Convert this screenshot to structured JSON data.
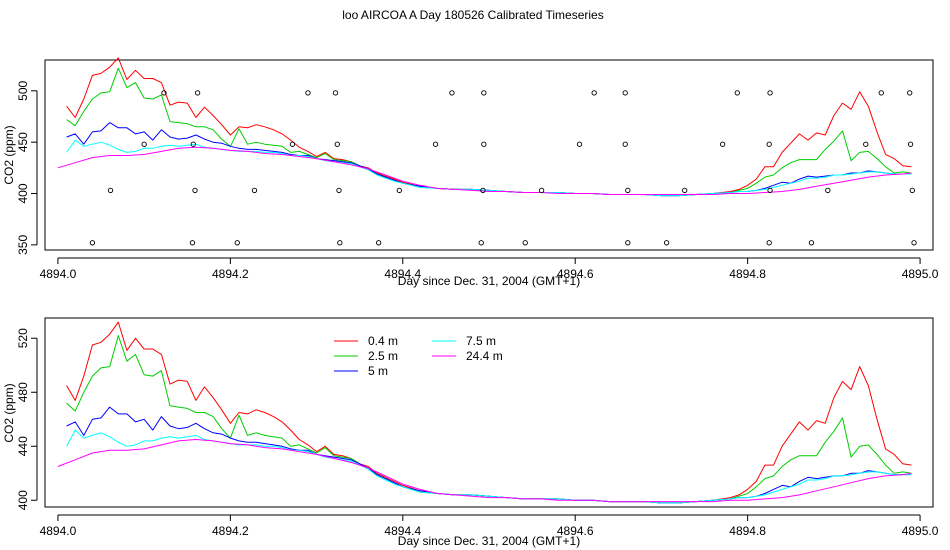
{
  "title": "loo AIRCOA A  Day 180526  Calibrated Timeseries",
  "colors": {
    "0.4 m": "#ff0000",
    "2.5 m": "#00cd00",
    "5 m": "#0000ff",
    "7.5 m": "#00ffff",
    "24.4 m": "#ff00ff"
  },
  "chart_data": [
    {
      "type": "line",
      "xlabel": "Day since Dec. 31, 2004 (GMT+1)",
      "ylabel": "CO2 (ppm)",
      "xlim": [
        4893.985,
        4895.015
      ],
      "ylim": [
        345,
        530
      ],
      "xticks": [
        "4894.0",
        "4894.2",
        "4894.4",
        "4894.6",
        "4894.8",
        "4895.0"
      ],
      "yticks": [
        "350",
        "400",
        "450",
        "500"
      ],
      "points": [
        {
          "x": 4894.04,
          "y": 352
        },
        {
          "x": 4894.156,
          "y": 352
        },
        {
          "x": 4894.208,
          "y": 352
        },
        {
          "x": 4894.327,
          "y": 352
        },
        {
          "x": 4894.372,
          "y": 352
        },
        {
          "x": 4894.491,
          "y": 352
        },
        {
          "x": 4894.542,
          "y": 352
        },
        {
          "x": 4894.661,
          "y": 352
        },
        {
          "x": 4894.706,
          "y": 352
        },
        {
          "x": 4894.825,
          "y": 352
        },
        {
          "x": 4894.874,
          "y": 352
        },
        {
          "x": 4894.993,
          "y": 352
        },
        {
          "x": 4894.061,
          "y": 403
        },
        {
          "x": 4894.159,
          "y": 403
        },
        {
          "x": 4894.228,
          "y": 403
        },
        {
          "x": 4894.326,
          "y": 403
        },
        {
          "x": 4894.396,
          "y": 403
        },
        {
          "x": 4894.493,
          "y": 403
        },
        {
          "x": 4894.561,
          "y": 403
        },
        {
          "x": 4894.661,
          "y": 403
        },
        {
          "x": 4894.727,
          "y": 403
        },
        {
          "x": 4894.826,
          "y": 403
        },
        {
          "x": 4894.893,
          "y": 403
        },
        {
          "x": 4894.991,
          "y": 403
        },
        {
          "x": 4894.1,
          "y": 448
        },
        {
          "x": 4894.157,
          "y": 448
        },
        {
          "x": 4894.272,
          "y": 448
        },
        {
          "x": 4894.324,
          "y": 448
        },
        {
          "x": 4894.438,
          "y": 448
        },
        {
          "x": 4894.494,
          "y": 448
        },
        {
          "x": 4894.605,
          "y": 448
        },
        {
          "x": 4894.658,
          "y": 448
        },
        {
          "x": 4894.771,
          "y": 448
        },
        {
          "x": 4894.825,
          "y": 448
        },
        {
          "x": 4894.937,
          "y": 448
        },
        {
          "x": 4894.989,
          "y": 448
        },
        {
          "x": 4894.123,
          "y": 498
        },
        {
          "x": 4894.162,
          "y": 498
        },
        {
          "x": 4894.29,
          "y": 498
        },
        {
          "x": 4894.322,
          "y": 498
        },
        {
          "x": 4894.457,
          "y": 498
        },
        {
          "x": 4894.494,
          "y": 498
        },
        {
          "x": 4894.622,
          "y": 498
        },
        {
          "x": 4894.658,
          "y": 498
        },
        {
          "x": 4894.788,
          "y": 498
        },
        {
          "x": 4894.826,
          "y": 498
        },
        {
          "x": 4894.955,
          "y": 498
        },
        {
          "x": 4894.988,
          "y": 498
        }
      ],
      "series": [
        {
          "name": "0.4 m",
          "x": [
            4894.01,
            4894.02,
            4894.03,
            4894.04,
            4894.05,
            4894.06,
            4894.07,
            4894.08,
            4894.09,
            4894.1,
            4894.11,
            4894.12,
            4894.13,
            4894.14,
            4894.15,
            4894.16,
            4894.17,
            4894.18,
            4894.19,
            4894.2,
            4894.21,
            4894.22,
            4894.23,
            4894.24,
            4894.25,
            4894.26,
            4894.27,
            4894.28,
            4894.29,
            4894.3,
            4894.31,
            4894.32,
            4894.33,
            4894.34,
            4894.35,
            4894.36,
            4894.37,
            4894.38,
            4894.39,
            4894.4,
            4894.42,
            4894.44,
            4894.46,
            4894.48,
            4894.5,
            4894.52,
            4894.54,
            4894.56,
            4894.58,
            4894.6,
            4894.62,
            4894.64,
            4894.66,
            4894.68,
            4894.7,
            4894.72,
            4894.74,
            4894.76,
            4894.78,
            4894.79,
            4894.8,
            4894.81,
            4894.82,
            4894.83,
            4894.84,
            4894.85,
            4894.86,
            4894.87,
            4894.88,
            4894.89,
            4894.9,
            4894.91,
            4894.92,
            4894.93,
            4894.94,
            4894.95,
            4894.96,
            4894.97,
            4894.98,
            4894.99
          ],
          "y": [
            485,
            474,
            492,
            515,
            517,
            523,
            532,
            511,
            520,
            512,
            512,
            508,
            486,
            489,
            488,
            474,
            484,
            476,
            467,
            457,
            465,
            464,
            467,
            465,
            462,
            458,
            452,
            445,
            441,
            436,
            440,
            434,
            433,
            431,
            427,
            425,
            420,
            417,
            414,
            411,
            407,
            405,
            404,
            404,
            403,
            402,
            401,
            401,
            401,
            400,
            400,
            399,
            399,
            399,
            398,
            398,
            399,
            400,
            402,
            404,
            408,
            414,
            426,
            426,
            440,
            449,
            458,
            452,
            459,
            457,
            476,
            488,
            482,
            499,
            485,
            460,
            438,
            434,
            427,
            426
          ]
        },
        {
          "name": "2.5 m",
          "x": [
            4894.01,
            4894.02,
            4894.03,
            4894.04,
            4894.05,
            4894.06,
            4894.07,
            4894.08,
            4894.09,
            4894.1,
            4894.11,
            4894.12,
            4894.13,
            4894.14,
            4894.15,
            4894.16,
            4894.17,
            4894.18,
            4894.19,
            4894.2,
            4894.21,
            4894.22,
            4894.23,
            4894.24,
            4894.25,
            4894.26,
            4894.27,
            4894.28,
            4894.29,
            4894.3,
            4894.31,
            4894.32,
            4894.33,
            4894.34,
            4894.35,
            4894.36,
            4894.37,
            4894.38,
            4894.39,
            4894.4,
            4894.42,
            4894.44,
            4894.46,
            4894.48,
            4894.5,
            4894.52,
            4894.54,
            4894.56,
            4894.58,
            4894.6,
            4894.62,
            4894.64,
            4894.66,
            4894.68,
            4894.7,
            4894.72,
            4894.74,
            4894.76,
            4894.78,
            4894.79,
            4894.8,
            4894.81,
            4894.82,
            4894.83,
            4894.84,
            4894.85,
            4894.86,
            4894.87,
            4894.88,
            4894.89,
            4894.9,
            4894.91,
            4894.92,
            4894.93,
            4894.94,
            4894.95,
            4894.96,
            4894.97,
            4894.98,
            4894.99
          ],
          "y": [
            472,
            466,
            480,
            492,
            498,
            499,
            522,
            503,
            508,
            493,
            492,
            496,
            470,
            469,
            468,
            465,
            465,
            462,
            453,
            446,
            463,
            448,
            450,
            448,
            447,
            446,
            440,
            441,
            438,
            435,
            439,
            433,
            432,
            431,
            427,
            423,
            419,
            416,
            413,
            410,
            406,
            405,
            404,
            404,
            403,
            402,
            401,
            401,
            401,
            400,
            400,
            399,
            399,
            399,
            398,
            398,
            399,
            400,
            401,
            403,
            405,
            410,
            416,
            418,
            425,
            430,
            433,
            433,
            433,
            443,
            451,
            461,
            432,
            440,
            441,
            434,
            426,
            420,
            421,
            420
          ]
        },
        {
          "name": "5 m",
          "x": [
            4894.01,
            4894.02,
            4894.03,
            4894.04,
            4894.05,
            4894.06,
            4894.07,
            4894.08,
            4894.09,
            4894.1,
            4894.11,
            4894.12,
            4894.13,
            4894.14,
            4894.15,
            4894.16,
            4894.17,
            4894.18,
            4894.19,
            4894.2,
            4894.21,
            4894.22,
            4894.23,
            4894.24,
            4894.25,
            4894.26,
            4894.27,
            4894.28,
            4894.29,
            4894.3,
            4894.31,
            4894.32,
            4894.33,
            4894.34,
            4894.35,
            4894.36,
            4894.37,
            4894.38,
            4894.39,
            4894.4,
            4894.42,
            4894.44,
            4894.46,
            4894.48,
            4894.5,
            4894.52,
            4894.54,
            4894.56,
            4894.58,
            4894.6,
            4894.62,
            4894.64,
            4894.66,
            4894.68,
            4894.7,
            4894.72,
            4894.74,
            4894.76,
            4894.78,
            4894.79,
            4894.8,
            4894.81,
            4894.82,
            4894.83,
            4894.84,
            4894.85,
            4894.86,
            4894.87,
            4894.88,
            4894.89,
            4894.9,
            4894.91,
            4894.92,
            4894.93,
            4894.94,
            4894.95,
            4894.96,
            4894.97,
            4894.98,
            4894.99
          ],
          "y": [
            455,
            458,
            448,
            460,
            461,
            469,
            464,
            464,
            458,
            460,
            452,
            462,
            455,
            453,
            454,
            457,
            453,
            450,
            449,
            446,
            444,
            443,
            443,
            442,
            441,
            440,
            438,
            437,
            437,
            434,
            433,
            432,
            431,
            430,
            427,
            424,
            419,
            416,
            413,
            410,
            407,
            405,
            404,
            404,
            403,
            402,
            401,
            401,
            401,
            400,
            400,
            399,
            399,
            399,
            398,
            398,
            399,
            400,
            401,
            402,
            402,
            403,
            405,
            408,
            411,
            410,
            414,
            417,
            416,
            417,
            418,
            418,
            420,
            420,
            422,
            421,
            420,
            419,
            419,
            419
          ]
        },
        {
          "name": "7.5 m",
          "x": [
            4894.01,
            4894.02,
            4894.03,
            4894.04,
            4894.05,
            4894.06,
            4894.07,
            4894.08,
            4894.09,
            4894.1,
            4894.11,
            4894.12,
            4894.13,
            4894.14,
            4894.15,
            4894.16,
            4894.17,
            4894.18,
            4894.19,
            4894.2,
            4894.21,
            4894.22,
            4894.23,
            4894.24,
            4894.25,
            4894.26,
            4894.27,
            4894.28,
            4894.29,
            4894.3,
            4894.31,
            4894.32,
            4894.33,
            4894.34,
            4894.35,
            4894.36,
            4894.37,
            4894.38,
            4894.39,
            4894.4,
            4894.42,
            4894.44,
            4894.46,
            4894.48,
            4894.5,
            4894.52,
            4894.54,
            4894.56,
            4894.58,
            4894.6,
            4894.62,
            4894.64,
            4894.66,
            4894.68,
            4894.7,
            4894.72,
            4894.74,
            4894.76,
            4894.78,
            4894.79,
            4894.8,
            4894.81,
            4894.82,
            4894.83,
            4894.84,
            4894.85,
            4894.86,
            4894.87,
            4894.88,
            4894.89,
            4894.9,
            4894.91,
            4894.92,
            4894.93,
            4894.94,
            4894.95,
            4894.96,
            4894.97,
            4894.98,
            4894.99
          ],
          "y": [
            440,
            452,
            446,
            448,
            450,
            447,
            443,
            440,
            441,
            444,
            444,
            446,
            447,
            446,
            447,
            448,
            445,
            444,
            443,
            442,
            441,
            441,
            441,
            440,
            440,
            439,
            437,
            437,
            436,
            434,
            432,
            431,
            430,
            429,
            426,
            423,
            418,
            415,
            412,
            410,
            406,
            405,
            404,
            404,
            403,
            402,
            401,
            401,
            401,
            400,
            400,
            399,
            399,
            399,
            398,
            398,
            399,
            400,
            401,
            402,
            402,
            403,
            404,
            406,
            408,
            410,
            412,
            415,
            415,
            416,
            418,
            418,
            419,
            420,
            421,
            421,
            420,
            419,
            419,
            419
          ]
        },
        {
          "name": "24.4 m",
          "x": [
            4894.0,
            4894.02,
            4894.04,
            4894.06,
            4894.08,
            4894.1,
            4894.12,
            4894.14,
            4894.16,
            4894.18,
            4894.2,
            4894.22,
            4894.24,
            4894.26,
            4894.28,
            4894.3,
            4894.32,
            4894.34,
            4894.36,
            4894.38,
            4894.4,
            4894.42,
            4894.44,
            4894.46,
            4894.48,
            4894.5,
            4894.52,
            4894.54,
            4894.56,
            4894.58,
            4894.6,
            4894.62,
            4894.64,
            4894.66,
            4894.68,
            4894.7,
            4894.72,
            4894.74,
            4894.76,
            4894.78,
            4894.8,
            4894.82,
            4894.84,
            4894.86,
            4894.88,
            4894.9,
            4894.92,
            4894.94,
            4894.96,
            4894.98,
            4894.99
          ],
          "y": [
            425,
            430,
            435,
            437,
            437,
            438,
            441,
            444,
            445,
            444,
            442,
            441,
            439,
            438,
            436,
            434,
            431,
            428,
            424,
            418,
            412,
            408,
            405,
            404,
            403,
            402,
            402,
            401,
            401,
            400,
            400,
            400,
            399,
            399,
            399,
            399,
            399,
            399,
            399,
            400,
            400,
            401,
            402,
            404,
            407,
            410,
            413,
            416,
            418,
            419,
            420
          ]
        }
      ]
    },
    {
      "type": "line",
      "xlabel": "Day since Dec. 31, 2004 (GMT+1)",
      "ylabel": "CO2 (ppm)",
      "xlim": [
        4893.985,
        4895.015
      ],
      "ylim": [
        395,
        535
      ],
      "xticks": [
        "4894.0",
        "4894.2",
        "4894.4",
        "4894.6",
        "4894.8",
        "4895.0"
      ],
      "yticks": [
        "400",
        "440",
        "480",
        "520"
      ],
      "legend": [
        "0.4 m",
        "2.5 m",
        "5 m",
        "7.5 m",
        "24.4 m"
      ]
    }
  ]
}
